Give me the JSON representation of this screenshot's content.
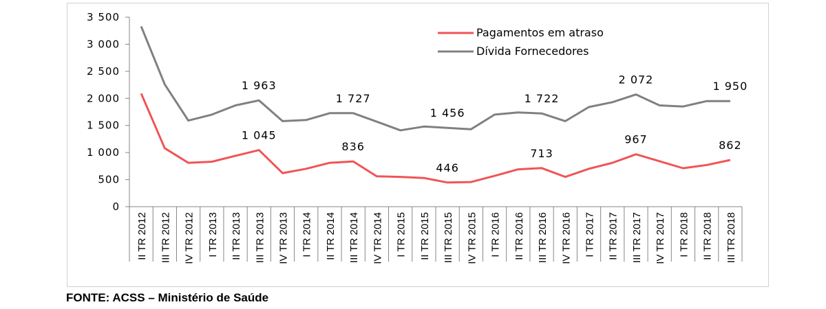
{
  "chart_data": {
    "type": "line",
    "title": "",
    "xlabel": "",
    "ylabel": "",
    "ylim": [
      0,
      3500
    ],
    "yticks": [
      0,
      500,
      1000,
      1500,
      2000,
      2500,
      3000,
      3500
    ],
    "ytick_labels": [
      "0",
      "500",
      "1 000",
      "1 500",
      "2 000",
      "2 500",
      "3 000",
      "3 500"
    ],
    "grid": false,
    "legend_position": "top-right",
    "categories": [
      "II TR 2012",
      "III TR 2012",
      "IV TR 2012",
      "I TR 2013",
      "II TR 2013",
      "III TR 2013",
      "IV TR 2013",
      "I TR 2014",
      "II TR 2014",
      "III TR 2014",
      "IV TR 2014",
      "I TR 2015",
      "II TR 2015",
      "III TR 2015",
      "IV TR 2015",
      "I TR 2016",
      "II TR 2016",
      "III TR 2016",
      "IV TR 2016",
      "I TR 2017",
      "II TR 2017",
      "III TR 2017",
      "IV TR 2017",
      "I TR 2018",
      "II TR 2018",
      "III TR 2018"
    ],
    "series": [
      {
        "name": "Pagamentos em atraso",
        "color": "#f05454",
        "values": [
          2090,
          1080,
          810,
          830,
          940,
          1045,
          620,
          700,
          810,
          836,
          560,
          550,
          530,
          446,
          455,
          570,
          690,
          713,
          550,
          700,
          810,
          967,
          840,
          710,
          770,
          862
        ],
        "data_labels": [
          {
            "index": 5,
            "text": "1 045"
          },
          {
            "index": 9,
            "text": "836"
          },
          {
            "index": 13,
            "text": "446"
          },
          {
            "index": 17,
            "text": "713"
          },
          {
            "index": 21,
            "text": "967"
          },
          {
            "index": 25,
            "text": "862"
          }
        ]
      },
      {
        "name": "Dívida Fornecedores",
        "color": "#808080",
        "values": [
          3330,
          2260,
          1590,
          1700,
          1870,
          1963,
          1580,
          1600,
          1727,
          1727,
          1570,
          1410,
          1480,
          1456,
          1430,
          1700,
          1740,
          1722,
          1580,
          1840,
          1930,
          2072,
          1870,
          1850,
          1950,
          1950
        ],
        "data_labels": [
          {
            "index": 5,
            "text": "1 963"
          },
          {
            "index": 9,
            "text": "1 727"
          },
          {
            "index": 13,
            "text": "1 456"
          },
          {
            "index": 17,
            "text": "1 722"
          },
          {
            "index": 21,
            "text": "2 072"
          },
          {
            "index": 25,
            "text": "1 950"
          }
        ]
      }
    ]
  },
  "source_note": "FONTE: ACSS – Ministério de Saúde"
}
